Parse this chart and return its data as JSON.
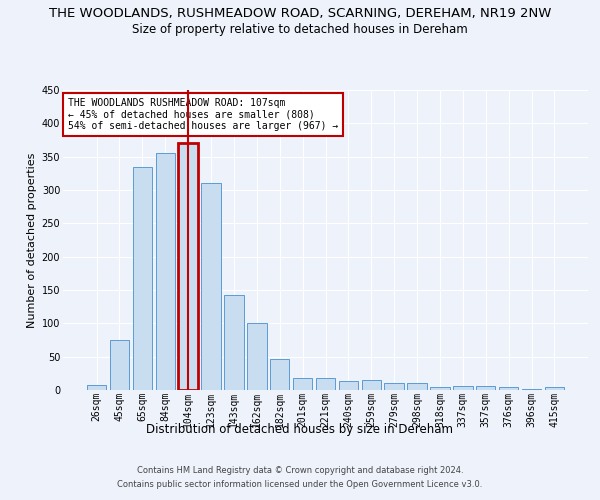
{
  "title": "THE WOODLANDS, RUSHMEADOW ROAD, SCARNING, DEREHAM, NR19 2NW",
  "subtitle": "Size of property relative to detached houses in Dereham",
  "xlabel": "Distribution of detached houses by size in Dereham",
  "ylabel": "Number of detached properties",
  "footer_line1": "Contains HM Land Registry data © Crown copyright and database right 2024.",
  "footer_line2": "Contains public sector information licensed under the Open Government Licence v3.0.",
  "categories": [
    "26sqm",
    "45sqm",
    "65sqm",
    "84sqm",
    "104sqm",
    "123sqm",
    "143sqm",
    "162sqm",
    "182sqm",
    "201sqm",
    "221sqm",
    "240sqm",
    "259sqm",
    "279sqm",
    "298sqm",
    "318sqm",
    "337sqm",
    "357sqm",
    "376sqm",
    "396sqm",
    "415sqm"
  ],
  "values": [
    7,
    75,
    335,
    355,
    370,
    310,
    143,
    100,
    46,
    18,
    18,
    13,
    15,
    10,
    10,
    4,
    6,
    6,
    4,
    1,
    4
  ],
  "bar_color": "#c9ddf0",
  "bar_edge_color": "#5b9bd5",
  "highlight_index": 4,
  "highlight_color": "#c00000",
  "annotation_text": "THE WOODLANDS RUSHMEADOW ROAD: 107sqm\n← 45% of detached houses are smaller (808)\n54% of semi-detached houses are larger (967) →",
  "ylim": [
    0,
    450
  ],
  "yticks": [
    0,
    50,
    100,
    150,
    200,
    250,
    300,
    350,
    400,
    450
  ],
  "background_color": "#eef2fb",
  "grid_color": "#ffffff",
  "title_fontsize": 9.5,
  "subtitle_fontsize": 8.5,
  "ylabel_fontsize": 8,
  "xlabel_fontsize": 8.5,
  "tick_fontsize": 7,
  "ann_fontsize": 7,
  "footer_fontsize": 6
}
